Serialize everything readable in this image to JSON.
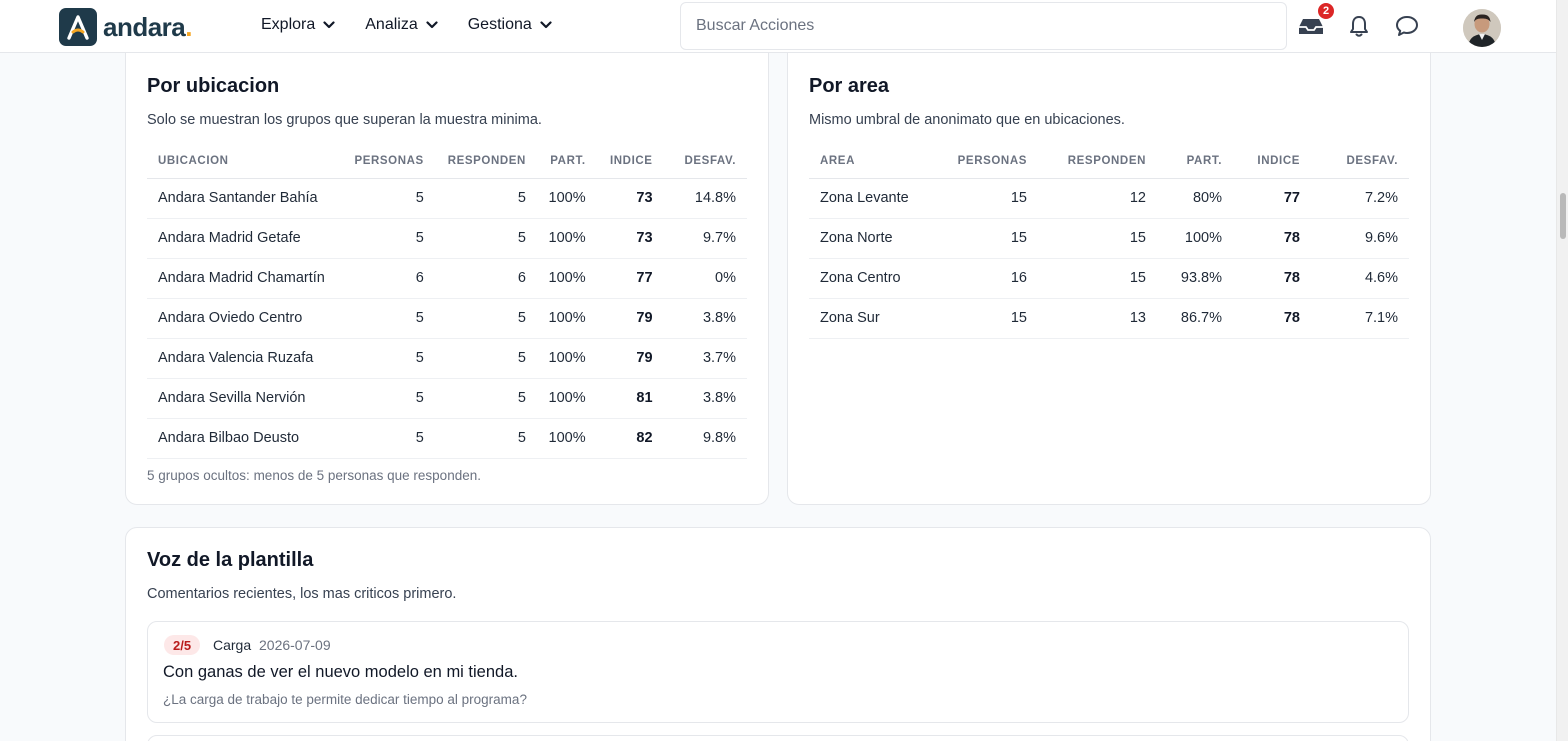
{
  "nav": {
    "logo_text": "andara",
    "logo_dot": ".",
    "menu": [
      "Explora",
      "Analiza",
      "Gestiona"
    ],
    "search_placeholder": "Buscar Acciones",
    "inbox_badge": "2",
    "icons": [
      "inbox-icon",
      "bell-icon",
      "chat-icon"
    ]
  },
  "por_ubicacion": {
    "title": "Por ubicacion",
    "subtitle": "Solo se muestran los grupos que superan la muestra minima.",
    "headers": [
      "UBICACION",
      "PERSONAS",
      "RESPONDEN",
      "PART.",
      "INDICE",
      "DESFAV."
    ],
    "rows": [
      [
        "Andara Santander Bahía",
        "5",
        "5",
        "100%",
        "73",
        "14.8%"
      ],
      [
        "Andara Madrid Getafe",
        "5",
        "5",
        "100%",
        "73",
        "9.7%"
      ],
      [
        "Andara Madrid Chamartín",
        "6",
        "6",
        "100%",
        "77",
        "0%"
      ],
      [
        "Andara Oviedo Centro",
        "5",
        "5",
        "100%",
        "79",
        "3.8%"
      ],
      [
        "Andara Valencia Ruzafa",
        "5",
        "5",
        "100%",
        "79",
        "3.7%"
      ],
      [
        "Andara Sevilla Nervión",
        "5",
        "5",
        "100%",
        "81",
        "3.8%"
      ],
      [
        "Andara Bilbao Deusto",
        "5",
        "5",
        "100%",
        "82",
        "9.8%"
      ]
    ],
    "footnote": "5 grupos ocultos: menos de 5 personas que responden."
  },
  "por_area": {
    "title": "Por area",
    "subtitle": "Mismo umbral de anonimato que en ubicaciones.",
    "headers": [
      "AREA",
      "PERSONAS",
      "RESPONDEN",
      "PART.",
      "INDICE",
      "DESFAV."
    ],
    "rows": [
      [
        "Zona Levante",
        "15",
        "12",
        "80%",
        "77",
        "7.2%"
      ],
      [
        "Zona Norte",
        "15",
        "15",
        "100%",
        "78",
        "9.6%"
      ],
      [
        "Zona Centro",
        "16",
        "15",
        "93.8%",
        "78",
        "4.6%"
      ],
      [
        "Zona Sur",
        "15",
        "13",
        "86.7%",
        "78",
        "7.1%"
      ]
    ]
  },
  "voz": {
    "title": "Voz de la plantilla",
    "subtitle": "Comentarios recientes, los mas criticos primero.",
    "comments": [
      {
        "score": "2/5",
        "category": "Carga",
        "date": "2026-07-09",
        "text": "Con ganas de ver el nuevo modelo en mi tienda.",
        "question": "¿La carga de trabajo te permite dedicar tiempo al programa?"
      }
    ]
  },
  "colors": {
    "brand": "#1f3a4a",
    "accent": "#f5a623",
    "badge": "#dc2626",
    "score_bg": "#fde8e8",
    "score_fg": "#b91c1c"
  }
}
